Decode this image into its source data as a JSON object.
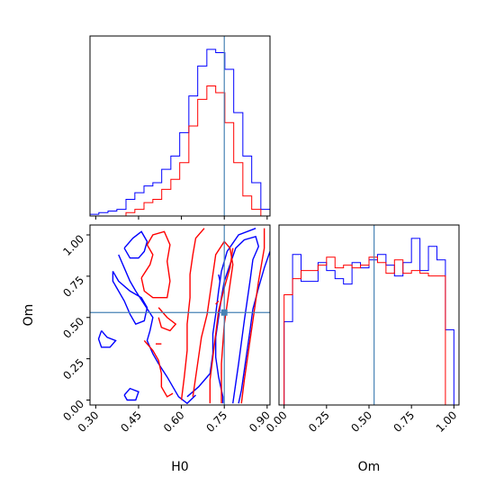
{
  "chart_data": {
    "type": "corner",
    "truth": {
      "H0": 0.75,
      "Om": 0.53
    },
    "colors": {
      "blue": "#0000ff",
      "red": "#ff0000",
      "truth": "#4682b4"
    },
    "panels": [
      {
        "id": "hist_H0",
        "type": "histogram",
        "xlim": [
          0.28,
          0.91
        ],
        "xticks": [
          0.3,
          0.45,
          0.6,
          0.75,
          0.9
        ],
        "bin_edges": [
          0.28,
          0.311,
          0.343,
          0.374,
          0.406,
          0.437,
          0.469,
          0.5,
          0.531,
          0.563,
          0.594,
          0.626,
          0.657,
          0.689,
          0.72,
          0.752,
          0.783,
          0.815,
          0.846,
          0.878,
          0.91
        ],
        "series": [
          {
            "name": "",
            "color": "#0000ff",
            "values": [
              0.5,
              1,
              1.5,
              2,
              5,
              7,
              9,
              10,
              14,
              18,
              25,
              36,
              45,
              50,
              49,
              44,
              31,
              18,
              10,
              2
            ]
          },
          {
            "name": "",
            "color": "#ff0000",
            "values": [
              0,
              0,
              0,
              0,
              1,
              2,
              4,
              5,
              8,
              11,
              16,
              27,
              35,
              39,
              37,
              28,
              16,
              6,
              2,
              0
            ]
          }
        ]
      },
      {
        "id": "hist_Om",
        "type": "histogram",
        "xlim": [
          -0.03,
          1.03
        ],
        "xticks": [
          0.0,
          0.25,
          0.5,
          0.75,
          1.0
        ],
        "xlabel": "Om",
        "bin_edges": [
          0.0,
          0.05,
          0.1,
          0.15,
          0.2,
          0.25,
          0.3,
          0.35,
          0.4,
          0.45,
          0.5,
          0.55,
          0.6,
          0.65,
          0.7,
          0.75,
          0.8,
          0.85,
          0.9,
          0.95,
          1.0
        ],
        "series": [
          {
            "name": "",
            "color": "#0000ff",
            "values": [
              31,
              56,
              46,
              46,
              53,
              50,
              47,
              45,
              53,
              51,
              54,
              56,
              52,
              48,
              53,
              62,
              50,
              59,
              54,
              28
            ]
          },
          {
            "name": "",
            "color": "#ff0000",
            "values": [
              41,
              47,
              50,
              50,
              52,
              55,
              51,
              52,
              51,
              52,
              55,
              53,
              49,
              54,
              49,
              50,
              49,
              48,
              48,
              0
            ]
          }
        ]
      },
      {
        "id": "contour_H0_Om",
        "type": "contour",
        "xlim": [
          0.28,
          0.91
        ],
        "ylim": [
          -0.03,
          1.06
        ],
        "xticks": [
          0.3,
          0.45,
          0.6,
          0.75,
          0.9
        ],
        "yticks": [
          0.0,
          0.25,
          0.5,
          0.75,
          1.0
        ],
        "xlabel": "H0",
        "ylabel": "Om",
        "truth_marker": {
          "x": 0.75,
          "y": 0.53
        },
        "series": [
          {
            "name": "",
            "color": "#0000ff",
            "lines": [
              [
                [
                  0.78,
                  -0.02
                ],
                [
                  0.79,
                  0.1
                ],
                [
                  0.8,
                  0.22
                ],
                [
                  0.81,
                  0.35
                ],
                [
                  0.82,
                  0.48
                ],
                [
                  0.83,
                  0.6
                ],
                [
                  0.84,
                  0.72
                ],
                [
                  0.85,
                  0.85
                ],
                [
                  0.87,
                  0.93
                ],
                [
                  0.86,
                  0.99
                ],
                [
                  0.82,
                  0.97
                ],
                [
                  0.79,
                  0.92
                ],
                [
                  0.77,
                  0.82
                ],
                [
                  0.75,
                  0.72
                ],
                [
                  0.74,
                  0.62
                ],
                [
                  0.73,
                  0.5
                ],
                [
                  0.72,
                  0.38
                ],
                [
                  0.72,
                  0.26
                ],
                [
                  0.73,
                  0.14
                ],
                [
                  0.745,
                  0.02
                ],
                [
                  0.745,
                  -0.02
                ]
              ],
              [
                [
                  0.91,
                  0.9
                ],
                [
                  0.89,
                  0.8
                ],
                [
                  0.87,
                  0.68
                ],
                [
                  0.85,
                  0.55
                ],
                [
                  0.84,
                  0.42
                ],
                [
                  0.83,
                  0.3
                ],
                [
                  0.82,
                  0.18
                ],
                [
                  0.81,
                  0.06
                ],
                [
                  0.8,
                  -0.02
                ]
              ],
              [
                [
                  0.62,
                  0.02
                ],
                [
                  0.66,
                  0.08
                ],
                [
                  0.7,
                  0.16
                ],
                [
                  0.71,
                  0.28
                ],
                [
                  0.71,
                  0.4
                ],
                [
                  0.72,
                  0.52
                ],
                [
                  0.73,
                  0.66
                ],
                [
                  0.74,
                  0.78
                ],
                [
                  0.76,
                  0.9
                ],
                [
                  0.8,
                  1.0
                ],
                [
                  0.86,
                  1.04
                ]
              ],
              [
                [
                  0.38,
                  0.88
                ],
                [
                  0.4,
                  0.8
                ],
                [
                  0.42,
                  0.72
                ],
                [
                  0.44,
                  0.66
                ],
                [
                  0.47,
                  0.58
                ],
                [
                  0.5,
                  0.5
                ],
                [
                  0.49,
                  0.42
                ],
                [
                  0.48,
                  0.36
                ],
                [
                  0.5,
                  0.28
                ],
                [
                  0.52,
                  0.22
                ],
                [
                  0.55,
                  0.14
                ],
                [
                  0.57,
                  0.08
                ],
                [
                  0.59,
                  0.02
                ],
                [
                  0.62,
                  -0.02
                ],
                [
                  0.65,
                  0.03
                ]
              ],
              [
                [
                  0.36,
                  0.78
                ],
                [
                  0.38,
                  0.72
                ],
                [
                  0.42,
                  0.66
                ],
                [
                  0.46,
                  0.62
                ],
                [
                  0.48,
                  0.56
                ],
                [
                  0.47,
                  0.48
                ],
                [
                  0.44,
                  0.46
                ],
                [
                  0.42,
                  0.52
                ],
                [
                  0.4,
                  0.6
                ],
                [
                  0.38,
                  0.66
                ],
                [
                  0.36,
                  0.72
                ],
                [
                  0.36,
                  0.78
                ]
              ],
              [
                [
                  0.4,
                  0.92
                ],
                [
                  0.43,
                  0.98
                ],
                [
                  0.46,
                  1.02
                ],
                [
                  0.48,
                  0.96
                ],
                [
                  0.47,
                  0.9
                ],
                [
                  0.45,
                  0.86
                ],
                [
                  0.42,
                  0.86
                ],
                [
                  0.4,
                  0.92
                ]
              ],
              [
                [
                  0.32,
                  0.42
                ],
                [
                  0.34,
                  0.38
                ],
                [
                  0.37,
                  0.36
                ],
                [
                  0.35,
                  0.32
                ],
                [
                  0.32,
                  0.32
                ],
                [
                  0.31,
                  0.37
                ],
                [
                  0.32,
                  0.42
                ]
              ],
              [
                [
                  0.4,
                  0.03
                ],
                [
                  0.42,
                  0.07
                ],
                [
                  0.45,
                  0.05
                ],
                [
                  0.44,
                  0.0
                ],
                [
                  0.41,
                  0.0
                ],
                [
                  0.4,
                  0.03
                ]
              ],
              [
                [
                  0.73,
                  0.76
                ],
                [
                  0.735,
                  0.72
                ]
              ]
            ]
          },
          {
            "name": "",
            "color": "#ff0000",
            "lines": [
              [
                [
                  0.64,
                  0.02
                ],
                [
                  0.65,
                  0.14
                ],
                [
                  0.66,
                  0.26
                ],
                [
                  0.67,
                  0.38
                ],
                [
                  0.69,
                  0.52
                ],
                [
                  0.7,
                  0.64
                ],
                [
                  0.71,
                  0.76
                ],
                [
                  0.72,
                  0.88
                ],
                [
                  0.75,
                  0.96
                ],
                [
                  0.77,
                  0.92
                ],
                [
                  0.78,
                  0.82
                ],
                [
                  0.77,
                  0.7
                ],
                [
                  0.76,
                  0.58
                ],
                [
                  0.75,
                  0.46
                ],
                [
                  0.745,
                  0.34
                ],
                [
                  0.74,
                  0.22
                ],
                [
                  0.74,
                  0.1
                ],
                [
                  0.74,
                  -0.02
                ]
              ],
              [
                [
                  0.7,
                  -0.02
                ],
                [
                  0.7,
                  0.12
                ],
                [
                  0.71,
                  0.26
                ],
                [
                  0.72,
                  0.4
                ],
                [
                  0.73,
                  0.54
                ],
                [
                  0.75,
                  0.68
                ],
                [
                  0.77,
                  0.8
                ],
                [
                  0.78,
                  0.92
                ]
              ],
              [
                [
                  0.81,
                  -0.02
                ],
                [
                  0.82,
                  0.12
                ],
                [
                  0.83,
                  0.24
                ],
                [
                  0.84,
                  0.36
                ],
                [
                  0.85,
                  0.48
                ],
                [
                  0.86,
                  0.6
                ],
                [
                  0.87,
                  0.72
                ],
                [
                  0.88,
                  0.82
                ],
                [
                  0.89,
                  0.92
                ],
                [
                  0.89,
                  1.04
                ]
              ],
              [
                [
                  0.6,
                  0.0
                ],
                [
                  0.61,
                  0.14
                ],
                [
                  0.62,
                  0.3
                ],
                [
                  0.62,
                  0.46
                ],
                [
                  0.63,
                  0.62
                ],
                [
                  0.63,
                  0.76
                ],
                [
                  0.64,
                  0.88
                ],
                [
                  0.65,
                  0.98
                ],
                [
                  0.68,
                  1.04
                ]
              ],
              [
                [
                  0.46,
                  0.74
                ],
                [
                  0.47,
                  0.66
                ],
                [
                  0.5,
                  0.62
                ],
                [
                  0.55,
                  0.62
                ],
                [
                  0.56,
                  0.72
                ],
                [
                  0.55,
                  0.84
                ],
                [
                  0.56,
                  0.94
                ],
                [
                  0.54,
                  1.02
                ],
                [
                  0.5,
                  1.0
                ],
                [
                  0.48,
                  0.94
                ],
                [
                  0.5,
                  0.88
                ],
                [
                  0.49,
                  0.82
                ],
                [
                  0.46,
                  0.74
                ]
              ],
              [
                [
                  0.47,
                  0.36
                ],
                [
                  0.5,
                  0.3
                ],
                [
                  0.52,
                  0.24
                ],
                [
                  0.53,
                  0.16
                ],
                [
                  0.53,
                  0.08
                ],
                [
                  0.55,
                  0.02
                ],
                [
                  0.57,
                  0.04
                ]
              ],
              [
                [
                  0.52,
                  0.56
                ],
                [
                  0.55,
                  0.5
                ],
                [
                  0.58,
                  0.46
                ],
                [
                  0.56,
                  0.42
                ],
                [
                  0.53,
                  0.44
                ],
                [
                  0.52,
                  0.5
                ]
              ],
              [
                [
                  0.51,
                  0.34
                ],
                [
                  0.53,
                  0.34
                ]
              ],
              [
                [
                  0.72,
                  0.58
                ],
                [
                  0.73,
                  0.6
                ]
              ]
            ]
          }
        ]
      }
    ]
  }
}
